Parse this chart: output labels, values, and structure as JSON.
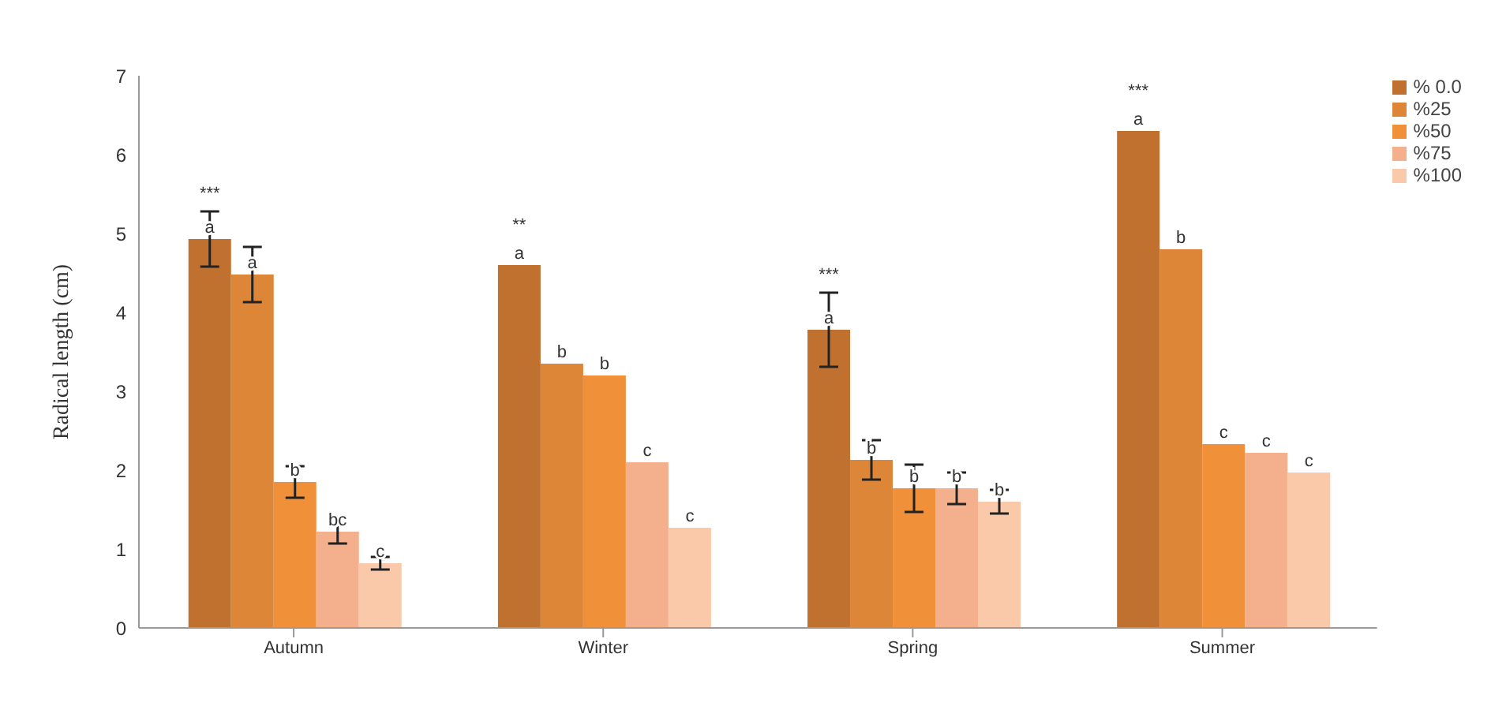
{
  "chart_data": {
    "type": "bar",
    "ylabel": "Radical length (cm)",
    "categories": [
      "Autumn",
      "Winter",
      "Spring",
      "Summer"
    ],
    "series": [
      {
        "name": "% 0.0",
        "color": "#c0712f",
        "values": [
          4.93,
          4.6,
          3.78,
          6.3
        ],
        "errors": [
          0.35,
          null,
          0.47,
          null
        ],
        "value_labels": [
          "a",
          "a",
          "a",
          "a"
        ]
      },
      {
        "name": "%25",
        "color": "#de8637",
        "values": [
          4.48,
          3.35,
          2.13,
          4.8
        ],
        "errors": [
          0.35,
          null,
          0.25,
          null
        ],
        "value_labels": [
          "a",
          "b",
          "b",
          "b"
        ]
      },
      {
        "name": "%50",
        "color": "#f0913a",
        "values": [
          1.85,
          3.2,
          1.77,
          2.33
        ],
        "errors": [
          0.2,
          null,
          0.3,
          null
        ],
        "value_labels": [
          "b",
          "b",
          "b",
          "c"
        ]
      },
      {
        "name": "%75",
        "color": "#f4b08c",
        "values": [
          1.22,
          2.1,
          1.77,
          2.22
        ],
        "errors": [
          0.15,
          null,
          0.2,
          null
        ],
        "value_labels": [
          "bc",
          "c",
          "b",
          "c"
        ]
      },
      {
        "name": "%100",
        "color": "#f9c9aa",
        "values": [
          0.82,
          1.27,
          1.6,
          1.97
        ],
        "errors": [
          0.08,
          null,
          0.15,
          null
        ],
        "value_labels": [
          "c",
          "c",
          "b",
          "c"
        ]
      }
    ],
    "annotations": [
      "***",
      "**",
      "***",
      "***"
    ],
    "ylim": [
      0,
      7
    ],
    "yticks": [
      0,
      1,
      2,
      3,
      4,
      5,
      6,
      7
    ],
    "grid": false,
    "legend": "top right"
  }
}
